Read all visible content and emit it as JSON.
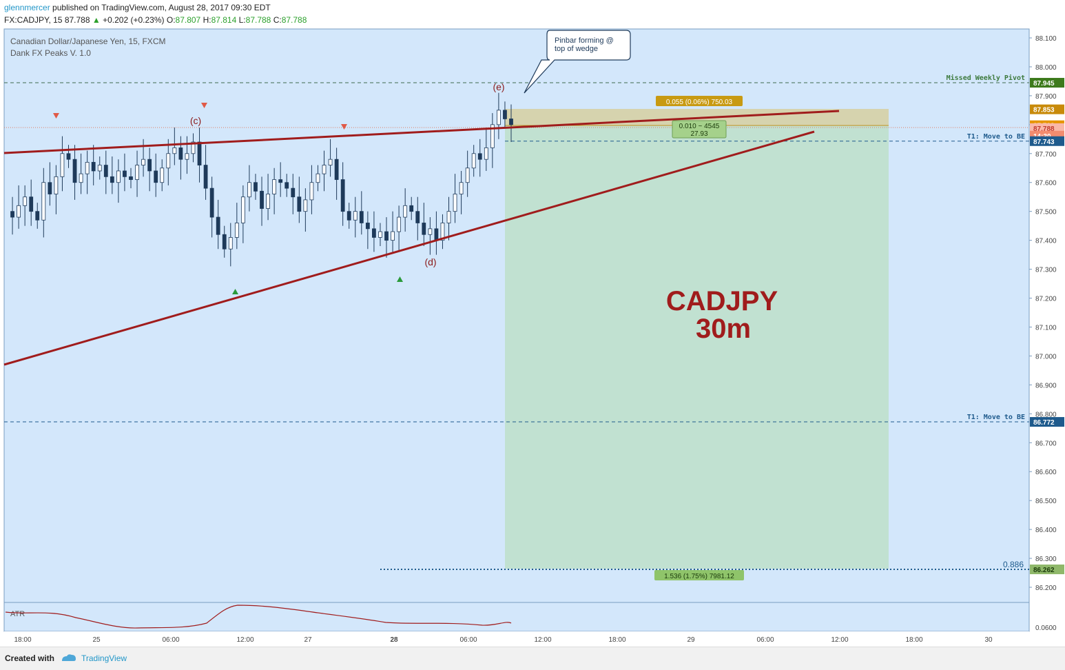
{
  "header": {
    "user": "glennmercer",
    "published_text": "published on TradingView.com, August 28, 2017 09:30 EDT",
    "symbol_line": "FX:CADJPY, 15  87.788",
    "change": "+0.202 (+0.23%)",
    "o_label": "O:",
    "o_val": "87.807",
    "h_label": "H:",
    "h_val": "87.814",
    "l_label": "L:",
    "l_val": "87.788",
    "c_label": "C:",
    "c_val": "87.788"
  },
  "legend": {
    "instrument": "Canadian Dollar/Japanese Yen, 15, FXCM",
    "indicator": "Dank FX Peaks V. 1.0"
  },
  "annotations": {
    "callout": [
      "Pinbar forming @",
      "top of wedge"
    ],
    "wave_c": "(c)",
    "wave_d": "(d)",
    "wave_e": "(e)",
    "big_title_1": "CADJPY",
    "big_title_2": "30m",
    "missed_pivot": "Missed Weekly Pivot",
    "t1_upper": "T1:  Move to BE",
    "t1_lower": "T1:  Move to BE",
    "fib": "0.886",
    "risk_box": "0.055 (0.06%) 750.03",
    "entry_box_1": "0.010 ~ 4545",
    "entry_box_2": "27.93",
    "reward_box": "1.536 (1.75%) 7981.12",
    "atr_label": "ATR"
  },
  "price_tags": [
    {
      "text": "87.945",
      "price": 87.945,
      "bg": "#3d7a1c"
    },
    {
      "text": "87.853",
      "price": 87.853,
      "bg": "#c88a0a"
    },
    {
      "text": "87.798",
      "price": 87.798,
      "bg": "#e69500"
    },
    {
      "text": "87.788",
      "price": 87.788,
      "bg": "#f9b8a8",
      "fg": "#c0392b"
    },
    {
      "text": "14:30",
      "price": 87.762,
      "bg": "#f28c6f"
    },
    {
      "text": "87.743",
      "price": 87.743,
      "bg": "#1e5a8c"
    },
    {
      "text": "86.772",
      "price": 86.772,
      "bg": "#1e5a8c"
    },
    {
      "text": "86.262",
      "price": 86.262,
      "bg": "#8fb86a",
      "fg": "#1a3a0a"
    }
  ],
  "chart_data": {
    "type": "line",
    "title": "",
    "xlabel": "",
    "ylabel": "",
    "ylim": [
      86.1,
      88.13
    ],
    "y_ticks": [
      "88.100",
      "88.000",
      "87.900",
      "87.800",
      "87.700",
      "87.600",
      "87.500",
      "87.400",
      "87.300",
      "87.200",
      "87.100",
      "87.000",
      "86.900",
      "86.800",
      "86.700",
      "86.600",
      "86.500",
      "86.400",
      "86.300",
      "86.200"
    ],
    "x_ticks": [
      "18:00",
      "25",
      "06:00",
      "12:00",
      "27",
      "28",
      "06:00",
      "12:00",
      "18:00",
      "29",
      "06:00",
      "12:00",
      "18:00",
      "30"
    ],
    "atr_tick": "0.0600",
    "levels": {
      "missed_weekly_pivot": 87.945,
      "t1_upper": 87.743,
      "t1_lower": 86.772,
      "fib_0886": 86.262,
      "entry": 87.798,
      "stop": 87.853
    },
    "series": [
      {
        "values": [
          87.5,
          87.48,
          87.52,
          87.55,
          87.5,
          87.47,
          87.6,
          87.56,
          87.62,
          87.7,
          87.68,
          87.6,
          87.63,
          87.67,
          87.64,
          87.66,
          87.62,
          87.6,
          87.64,
          87.62,
          87.61,
          87.66,
          87.68,
          87.64,
          87.6,
          87.65,
          87.7,
          87.72,
          87.68,
          87.7,
          87.74,
          87.66,
          87.58,
          87.48,
          87.42,
          87.37,
          87.41,
          87.46,
          87.55,
          87.6,
          87.57,
          87.51,
          87.56,
          87.61,
          87.6,
          87.58,
          87.55,
          87.5,
          87.54,
          87.6,
          87.63,
          87.66,
          87.68,
          87.61,
          87.5,
          87.47,
          87.5,
          87.46,
          87.44,
          87.41,
          87.43,
          87.4,
          87.43,
          87.48,
          87.52,
          87.5,
          87.46,
          87.42,
          87.44,
          87.4,
          87.46,
          87.5,
          87.56,
          87.6,
          87.65,
          87.7,
          87.68,
          87.72,
          87.8,
          87.85,
          87.82,
          87.8
        ]
      }
    ]
  }
}
